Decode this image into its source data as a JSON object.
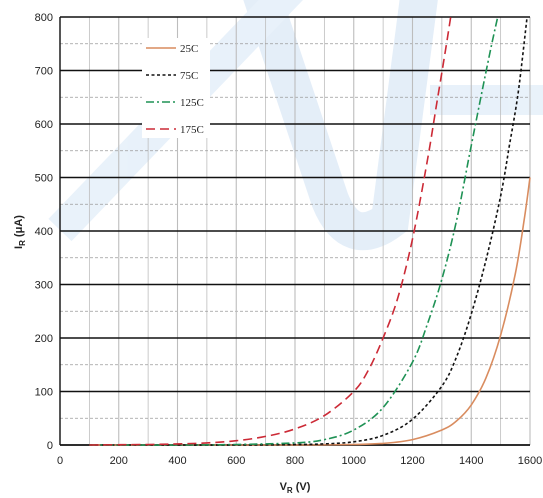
{
  "chart_data": {
    "type": "line",
    "xlabel": "V",
    "xlabel_sub": "R",
    "xlabel_unit": " (V)",
    "ylabel": "I",
    "ylabel_sub": "R",
    "ylabel_unit": " (μA)",
    "xlim": [
      0,
      1600
    ],
    "ylim": [
      0,
      800
    ],
    "x_ticks": [
      0,
      200,
      400,
      600,
      800,
      1000,
      1200,
      1400,
      1600
    ],
    "y_ticks": [
      0,
      100,
      200,
      300,
      400,
      500,
      600,
      700,
      800
    ],
    "x_ticks_labels": [
      "0",
      "200",
      "400",
      "600",
      "800",
      "1000",
      "1200",
      "1400",
      "1600"
    ],
    "y_ticks_labels": [
      "0",
      "100",
      "200",
      "300",
      "400",
      "500",
      "600",
      "700",
      "800"
    ],
    "grid": "major and minor",
    "legend_position": "top-left inside",
    "series": [
      {
        "name": "25C",
        "color": "#d98c5f",
        "dash": "solid",
        "x": [
          100,
          400,
          600,
          800,
          1000,
          1100,
          1200,
          1300,
          1350,
          1400,
          1450,
          1500,
          1550,
          1580,
          1600
        ],
        "y": [
          0,
          0,
          0,
          0,
          1,
          3,
          10,
          28,
          45,
          75,
          125,
          205,
          320,
          420,
          500
        ]
      },
      {
        "name": "75C",
        "color": "#111111",
        "dash": "dotted",
        "x": [
          100,
          400,
          600,
          800,
          900,
          1000,
          1100,
          1200,
          1300,
          1350,
          1400,
          1450,
          1500,
          1530,
          1560,
          1590
        ],
        "y": [
          0,
          0,
          0,
          1,
          2,
          6,
          18,
          48,
          110,
          165,
          245,
          345,
          465,
          560,
          660,
          800
        ]
      },
      {
        "name": "125C",
        "color": "#1f9255",
        "dash": "dashdot",
        "x": [
          100,
          400,
          600,
          800,
          900,
          1000,
          1100,
          1200,
          1250,
          1300,
          1350,
          1400,
          1440,
          1470,
          1490
        ],
        "y": [
          0,
          0,
          1,
          4,
          10,
          28,
          70,
          155,
          225,
          310,
          420,
          560,
          670,
          750,
          800
        ]
      },
      {
        "name": "175C",
        "color": "#cc2a36",
        "dash": "dashed",
        "x": [
          100,
          300,
          400,
          500,
          600,
          700,
          800,
          900,
          1000,
          1050,
          1100,
          1150,
          1200,
          1250,
          1280,
          1310,
          1330
        ],
        "y": [
          0,
          1,
          2,
          4,
          8,
          16,
          30,
          55,
          100,
          140,
          200,
          275,
          385,
          530,
          630,
          730,
          800
        ]
      }
    ]
  }
}
